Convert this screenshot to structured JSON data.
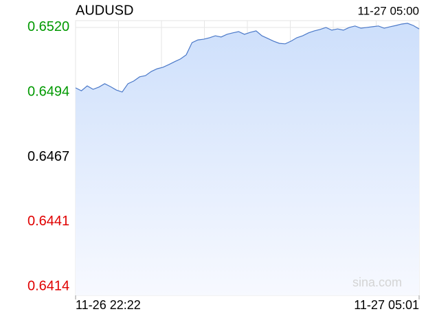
{
  "chart_data": {
    "type": "line",
    "title": "AUDUSD",
    "updated": "11-27 05:00",
    "x_start_label": "11-26 22:22",
    "x_end_label": "11-27 05:01",
    "watermark": "sina.com",
    "color": "#4a78c8",
    "fill": true,
    "ylim": [
      0.64104,
      0.65228
    ],
    "yticks": [
      {
        "value": 0.6414,
        "label": "0.6414"
      },
      {
        "value": 0.64405,
        "label": "0.6441"
      },
      {
        "value": 0.6467,
        "label": "0.6467"
      },
      {
        "value": 0.64935,
        "label": "0.6494"
      },
      {
        "value": 0.652,
        "label": "0.6520"
      }
    ],
    "ytick_colors": [
      "#e00000",
      "#e00000",
      "#000000",
      "#009900",
      "#009900"
    ],
    "baseline_tick": 2,
    "grid": true,
    "values": [
      0.64953,
      0.64941,
      0.64961,
      0.64947,
      0.64956,
      0.6497,
      0.64958,
      0.64944,
      0.64936,
      0.6497,
      0.64981,
      0.64998,
      0.65003,
      0.6502,
      0.65031,
      0.65037,
      0.65048,
      0.6506,
      0.65071,
      0.65088,
      0.65138,
      0.65149,
      0.65152,
      0.65158,
      0.65166,
      0.65161,
      0.65172,
      0.65178,
      0.65183,
      0.65172,
      0.6518,
      0.65186,
      0.65166,
      0.65155,
      0.65144,
      0.65135,
      0.65133,
      0.65144,
      0.65158,
      0.65166,
      0.65178,
      0.65186,
      0.65192,
      0.652,
      0.65189,
      0.65194,
      0.65189,
      0.652,
      0.65206,
      0.65197,
      0.652,
      0.65203,
      0.65206,
      0.65197,
      0.65203,
      0.65208,
      0.65214,
      0.65217,
      0.65208,
      0.65194
    ]
  }
}
